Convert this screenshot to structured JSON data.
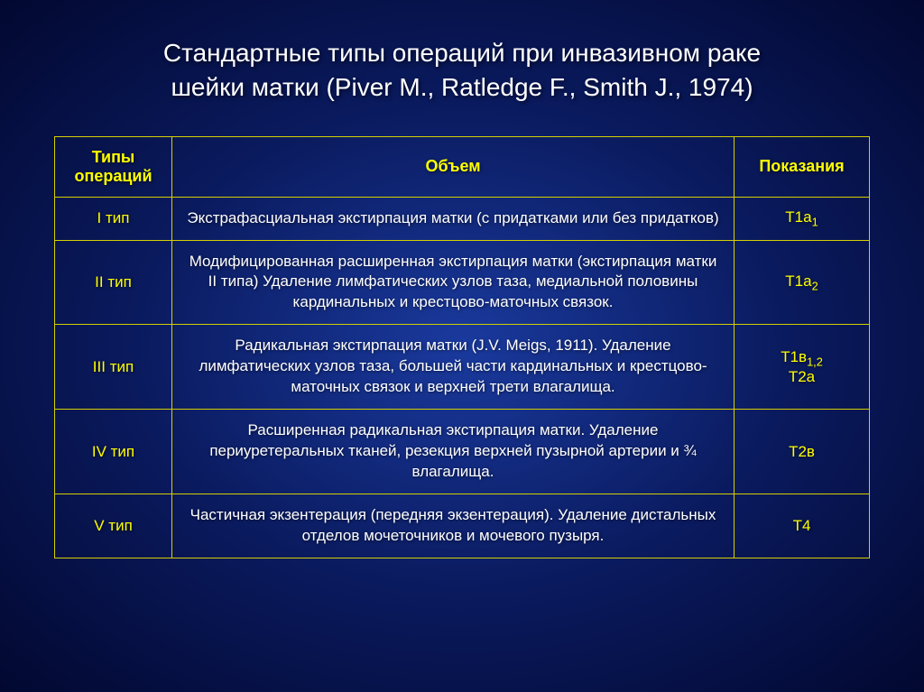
{
  "title_line1": "Стандартные типы операций при инвазивном раке",
  "title_line2": "шейки матки (Piver M., Ratledge F., Smith J., 1974)",
  "headers": {
    "type": "Типы операций",
    "volume": "Объем",
    "indication": "Показания"
  },
  "rows": [
    {
      "type": "I тип",
      "volume": "Экстрафасциальная экстирпация матки (с придатками или без придатков)",
      "indication_html": "T1a<span class='sub'>1</span>"
    },
    {
      "type": "II тип",
      "volume": "Модифицированная расширенная экстирпация матки (экстирпация матки II типа) Удаление лимфатических узлов таза, медиальной половины кардинальных и крестцово-маточных связок.",
      "indication_html": "T1a<span class='sub'>2</span>"
    },
    {
      "type": "III тип",
      "volume": "Радикальная экстирпация матки (J.V. Meigs, 1911). Удаление лимфатических узлов таза, большей части кардинальных и крестцово-маточных связок и верхней трети влагалища.",
      "indication_html": "T1в<span class='sub'>1,2</span><br>T2a"
    },
    {
      "type": "IV тип",
      "volume": "Расширенная радикальная экстирпация матки. Удаление периуретеральных тканей, резекция верхней пузырной артерии и          ¾ влагалища.",
      "indication_html": "T2в"
    },
    {
      "type": "V тип",
      "volume": "Частичная экзентерация (передняя экзентерация). Удаление дистальных отделов мочеточников и мочевого пузыря.",
      "indication_html": "T4"
    }
  ]
}
